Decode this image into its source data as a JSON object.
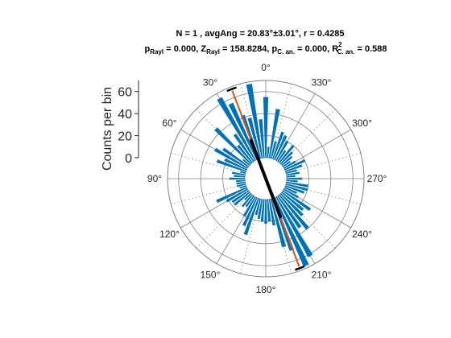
{
  "chart_data": {
    "type": "polar-histogram",
    "title_line1": "N = 1 , avgAng = 20.83°±3.01°, r = 0.4285",
    "title_line2": {
      "p_rayl_value": "0.000",
      "z_rayl_value": "158.8284",
      "p_can_value": "0.000",
      "r2_can_value": "0.588",
      "sub_rayl": "Rayl",
      "sub_can": "C. an.",
      "sup_two": "2"
    },
    "ylabel": "Counts per bin",
    "y_ticks": [
      "0",
      "20",
      "40",
      "60"
    ],
    "ylim": [
      0,
      70
    ],
    "theta_tick_labels": [
      {
        "deg": 0,
        "label": "0°"
      },
      {
        "deg": 30,
        "label": "30°"
      },
      {
        "deg": 60,
        "label": "60°"
      },
      {
        "deg": 90,
        "label": "90°"
      },
      {
        "deg": 120,
        "label": "120°"
      },
      {
        "deg": 150,
        "label": "150°"
      },
      {
        "deg": 180,
        "label": "180°"
      },
      {
        "deg": 210,
        "label": "210°"
      },
      {
        "deg": 240,
        "label": "240°"
      },
      {
        "deg": 270,
        "label": "270°"
      },
      {
        "deg": 300,
        "label": "300°"
      },
      {
        "deg": 330,
        "label": "330°"
      }
    ],
    "theta_direction": "counterclockwise",
    "theta_zero": "top",
    "bin_width_deg": 5,
    "bin_centers_deg": [
      0,
      5,
      10,
      15,
      20,
      25,
      30,
      35,
      40,
      45,
      50,
      55,
      60,
      65,
      70,
      75,
      80,
      85,
      90,
      95,
      100,
      105,
      110,
      115,
      120,
      125,
      130,
      135,
      140,
      145,
      150,
      155,
      160,
      165,
      170,
      175,
      180,
      185,
      190,
      195,
      200,
      205,
      210,
      215,
      220,
      225,
      230,
      235,
      240,
      245,
      250,
      255,
      260,
      265,
      270,
      275,
      280,
      285,
      290,
      295,
      300,
      305,
      310,
      315,
      320,
      325,
      330,
      335,
      340,
      345,
      350,
      355
    ],
    "counts": [
      55,
      35,
      68,
      38,
      42,
      56,
      65,
      30,
      20,
      45,
      8,
      28,
      34,
      22,
      28,
      5,
      12,
      10,
      14,
      8,
      8,
      8,
      6,
      30,
      22,
      18,
      18,
      8,
      14,
      12,
      20,
      28,
      35,
      15,
      18,
      20,
      22,
      20,
      24,
      45,
      50,
      68,
      62,
      35,
      40,
      28,
      25,
      30,
      15,
      12,
      18,
      20,
      20,
      10,
      14,
      8,
      12,
      10,
      16,
      20,
      12,
      8,
      12,
      15,
      20,
      12,
      20,
      24,
      26,
      16,
      45,
      10
    ],
    "mean_angle_deg": 20.83,
    "ci_deg": 3.01,
    "resultant_length": 0.4285,
    "colors": {
      "bars": "#0072BD",
      "mean_axis": "#D95319",
      "resultant": "#000000",
      "grid": "#808080",
      "text": "#262626"
    }
  }
}
